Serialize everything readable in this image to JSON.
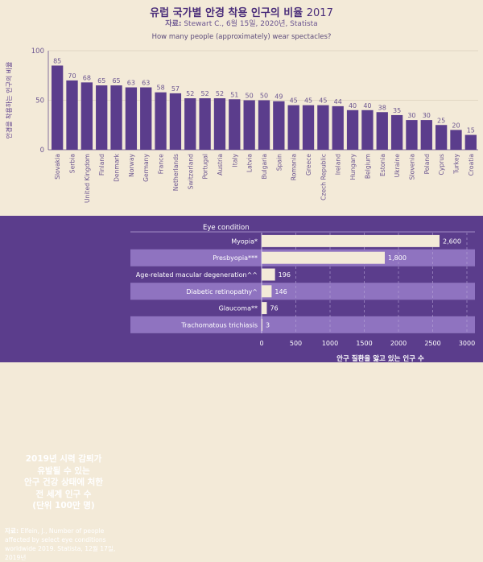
{
  "header": {
    "title": "유럽 국가별 안경 착용 인구의 비율",
    "title_year": "2017",
    "source_label": "자료:",
    "source_text": "Stewart C., 6월 15일, 2020년, Statista"
  },
  "colors": {
    "top_bg": "#f3ead8",
    "bottom_bg": "#5b3d8c",
    "bar": "#5b3d8c",
    "hbar": "#f3ead8",
    "row_alt": "#8f73c0",
    "title": "#4a2d7a"
  },
  "chart_data": [
    {
      "type": "bar",
      "title": "How many people (approximately) wear spectacles?",
      "ylabel": "안경을 착용하는 인구의 비율",
      "ylim": [
        0,
        100
      ],
      "yticks": [
        0,
        50,
        100
      ],
      "grid": true,
      "categories": [
        "Slovakia",
        "Serbia",
        "United Kingdom",
        "Finland",
        "Denmark",
        "Norway",
        "Germany",
        "France",
        "Netherlands",
        "Switzerland",
        "Portugal",
        "Austria",
        "Italy",
        "Latvia",
        "Bulgaria",
        "Spain",
        "Romania",
        "Greece",
        "Czech Republic",
        "Ireland",
        "Hungary",
        "Belgium",
        "Estonia",
        "Ukraine",
        "Slovenia",
        "Poland",
        "Cyprus",
        "Turkey",
        "Croatia"
      ],
      "values": [
        85,
        70,
        68,
        65,
        65,
        63,
        63,
        58,
        57,
        52,
        52,
        52,
        51,
        50,
        50,
        49,
        45,
        45,
        45,
        44,
        40,
        40,
        38,
        35,
        30,
        30,
        25,
        20,
        15
      ]
    },
    {
      "type": "bar",
      "orientation": "horizontal",
      "title": "2019년 시력 감퇴가 유발될 수 있는 안구 건강 상태에 처한 전 세계 인구 수 (단위 100만 명)",
      "title_lines": [
        "2019년 시력 감퇴가",
        "유발될 수 있는",
        "안구 건강 상태에 처한",
        "전 세계 인구 수",
        "(단위 100만 명)"
      ],
      "column_header": "Eye condition",
      "xlabel": "안구 질환을 앓고 있는 인구 수",
      "xlim": [
        0,
        3000
      ],
      "xticks": [
        0,
        500,
        1000,
        1500,
        2000,
        2500,
        3000
      ],
      "xtick_labels": [
        "0",
        "500",
        "1000",
        "1500",
        "2000",
        "2500",
        "3000"
      ],
      "grid": true,
      "categories": [
        "Myopia*",
        "Presbyopia***",
        "Age-related macular degeneration^^",
        "Diabetic retinopathy^",
        "Glaucoma**",
        "Trachomatous trichiasis"
      ],
      "values": [
        2600,
        1800,
        196,
        146,
        76,
        3
      ],
      "value_labels": [
        "2,600",
        "1,800",
        "196",
        "146",
        "76",
        "3"
      ],
      "source_label": "자료:",
      "source_text": "Elfein, J., Number of people affected by select eye conditions worldwide 2019. Statista, 12월 17일, 2019년"
    }
  ]
}
